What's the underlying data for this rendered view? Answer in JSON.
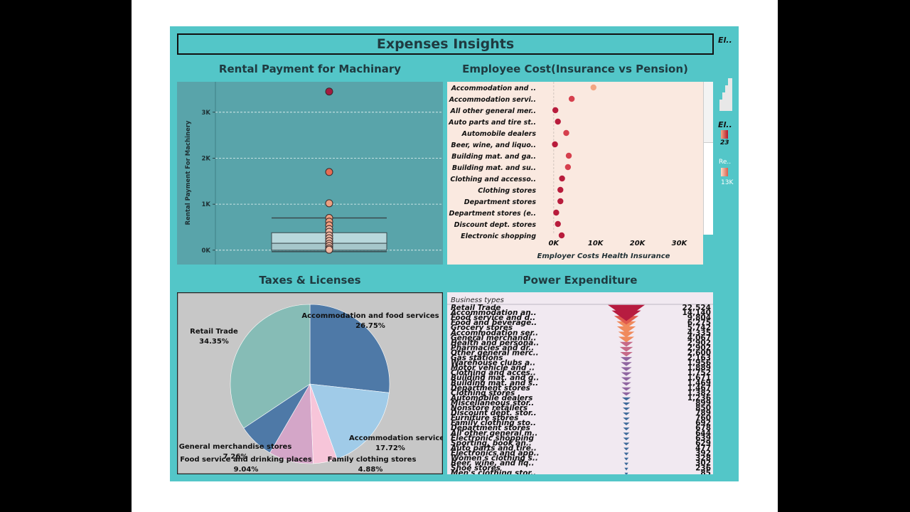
{
  "dashboard": {
    "title": "Expenses Insights",
    "side_label_1": "El..",
    "side_label_2": "El..",
    "side_label_3": "Re..",
    "side_val_1": "23",
    "side_val_2": "13K"
  },
  "panels": {
    "rental_title": "Rental Payment for Machinary",
    "employee_title": "Employee Cost(Insurance vs Pension)",
    "taxes_title": "Taxes & Licenses",
    "power_title": "Power Expenditure"
  },
  "chart_data": [
    {
      "id": "rental",
      "type": "scatter",
      "title": "Rental Payment for Machinary",
      "ylabel": "Rental Payment For Machinery",
      "yticks": [
        0,
        1000,
        2000,
        3000
      ],
      "yticklabels": [
        "0K",
        "1K",
        "2K",
        "3K"
      ],
      "ylim": [
        -250,
        3600
      ],
      "points": [
        3450,
        1700,
        1020,
        700,
        620,
        540,
        460,
        400,
        320,
        260,
        200,
        140,
        90,
        40,
        10
      ],
      "box": {
        "q1": 0,
        "median": 150,
        "q3": 380,
        "whisker_low": 0,
        "whisker_high": 700
      },
      "grid": true
    },
    {
      "id": "employee",
      "type": "scatter",
      "title": "Employee Cost(Insurance vs Pension)",
      "xlabel": "Employer Costs Health Insurance",
      "xticks": [
        0,
        10000,
        20000,
        30000
      ],
      "xticklabels": [
        "0K",
        "10K",
        "20K",
        "30K"
      ],
      "xlim": [
        -1500,
        34000
      ],
      "categories": [
        "Accommodation and ..",
        "Accommodation servi..",
        "All other general mer..",
        "Auto parts and tire st..",
        "Automobile dealers",
        "Beer, wine, and liquo..",
        "Building mat. and ga..",
        "Building mat. and su..",
        "Clothing and accesso..",
        "Clothing stores",
        "Department stores",
        "Department stores (e..",
        "Discount dept. stores",
        "Electronic shopping"
      ],
      "values": [
        9500,
        4300,
        400,
        1000,
        3000,
        300,
        3600,
        3400,
        2000,
        1600,
        1600,
        600,
        1000,
        1900
      ]
    },
    {
      "id": "taxes",
      "type": "pie",
      "title": "Taxes & Licenses",
      "labels": [
        "Accommodation and food services",
        "Accommodation services",
        "Family clothing stores",
        "Food service and drinking places",
        "General merchandise stores",
        "Retail Trade"
      ],
      "values": [
        26.75,
        17.72,
        4.88,
        9.04,
        7.26,
        34.35
      ],
      "value_labels": [
        "26.75%",
        "17.72%",
        "4.88%",
        "9.04%",
        "7.26%",
        "34.35%"
      ],
      "colors": [
        "#4e79a7",
        "#a0cbe8",
        "#f7c5d9",
        "#d4a6c8",
        "#4e79a7",
        "#86bcb6"
      ]
    },
    {
      "id": "power",
      "type": "bar",
      "title": "Power Expenditure",
      "header": "Business types",
      "categories": [
        "Retail Trade",
        "Accommodation an..",
        "Food service and d..",
        "Food and beverage..",
        "Grocery stores",
        "Accommodation ser..",
        "General merchandi..",
        "Health and persona..",
        "Pharmacies and dr..",
        "Other general merc..",
        "Gas stations",
        "Warehouse clubs a..",
        "Motor vehicle and ..",
        "Clothing and acces..",
        "Building mat. and g..",
        "Building mat. and s..",
        "Department stores",
        "Clothing stores",
        "Automobile dealers",
        "Miscellaneous stor..",
        "Nonstore retailers",
        "Discount dept. stor..",
        "Furniture stores",
        "Family clothing sto..",
        "Department stores",
        "All other general m..",
        "Electronic shopping",
        "Sporting, book an..",
        "Auto parts and tire..",
        "Electronics and app..",
        "Women's clothing s..",
        "Beer, wine, and liq..",
        "Shoe stores",
        "Men's clothing stor.."
      ],
      "values": [
        22524,
        14140,
        9804,
        6275,
        5742,
        4335,
        4067,
        2902,
        2902,
        2600,
        2163,
        1956,
        1889,
        1752,
        1671,
        1469,
        1467,
        1382,
        1236,
        899,
        850,
        789,
        760,
        692,
        678,
        644,
        639,
        629,
        477,
        392,
        328,
        302,
        236,
        85
      ],
      "value_labels": [
        "22,524",
        "14,140",
        "9,804",
        "6,275",
        "5,742",
        "4,335",
        "4,067",
        "2,902",
        "2,902",
        "2,600",
        "2,163",
        "1,956",
        "1,889",
        "1,752",
        "1,671",
        "1,469",
        "1,467",
        "1,382",
        "1,236",
        "899",
        "850",
        "789",
        "760",
        "692",
        "678",
        "644",
        "639",
        "629",
        "477",
        "392",
        "328",
        "302",
        "236",
        "85"
      ]
    }
  ]
}
